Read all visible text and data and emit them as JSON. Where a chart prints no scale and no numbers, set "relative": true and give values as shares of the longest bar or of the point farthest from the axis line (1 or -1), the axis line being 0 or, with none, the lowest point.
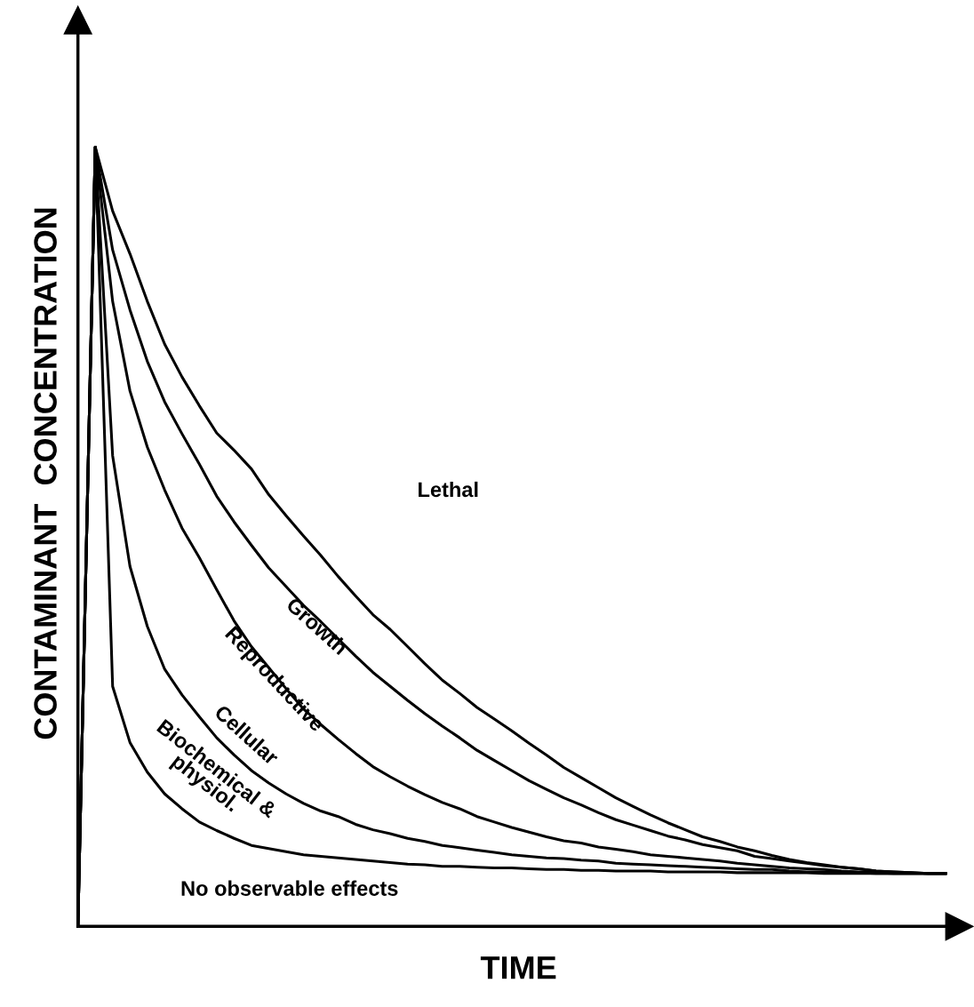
{
  "chart_data": {
    "type": "line",
    "relative": true,
    "xlabel": "TIME",
    "ylabel": "CONTAMINANT  CONCENTRATION",
    "line_style": "solid",
    "categories": [
      null,
      null,
      null,
      null,
      null,
      null,
      null,
      null,
      null,
      null,
      null,
      null,
      null,
      null,
      null,
      null,
      null,
      null,
      null,
      null,
      null,
      null,
      null,
      null,
      null,
      null,
      null,
      null,
      null,
      null,
      null,
      null,
      null,
      null,
      null,
      null,
      null,
      null,
      null,
      null,
      null,
      null,
      null,
      null,
      null,
      null,
      null,
      null,
      null,
      null,
      null
    ],
    "series": [
      {
        "color": "#000000",
        "values": [
          0,
          1,
          0.918,
          0.863,
          0.802,
          0.747,
          0.705,
          0.668,
          0.633,
          0.611,
          0.587,
          0.554,
          0.527,
          0.501,
          0.476,
          0.449,
          0.424,
          0.4,
          0.381,
          0.359,
          0.337,
          0.316,
          0.299,
          0.281,
          0.266,
          0.251,
          0.235,
          0.22,
          0.204,
          0.191,
          0.178,
          0.165,
          0.154,
          0.143,
          0.133,
          0.124,
          0.115,
          0.109,
          0.102,
          0.097,
          0.091,
          0.086,
          0.082,
          0.079,
          0.076,
          0.074,
          0.071,
          0.07,
          0.069,
          0.068,
          0.068
        ]
      },
      {
        "color": "#000000",
        "values": [
          0,
          1,
          0.868,
          0.791,
          0.725,
          0.673,
          0.632,
          0.593,
          0.552,
          0.519,
          0.489,
          0.46,
          0.436,
          0.412,
          0.391,
          0.369,
          0.347,
          0.326,
          0.308,
          0.29,
          0.273,
          0.257,
          0.242,
          0.226,
          0.213,
          0.2,
          0.187,
          0.176,
          0.165,
          0.156,
          0.146,
          0.137,
          0.13,
          0.123,
          0.116,
          0.111,
          0.105,
          0.101,
          0.097,
          0.09,
          0.087,
          0.084,
          0.081,
          0.078,
          0.076,
          0.074,
          0.071,
          0.07,
          0.069,
          0.068,
          0.068
        ]
      },
      {
        "color": "#000000",
        "values": [
          0,
          1,
          0.802,
          0.687,
          0.615,
          0.56,
          0.511,
          0.473,
          0.432,
          0.392,
          0.359,
          0.332,
          0.305,
          0.279,
          0.259,
          0.24,
          0.222,
          0.205,
          0.192,
          0.18,
          0.169,
          0.159,
          0.151,
          0.141,
          0.134,
          0.127,
          0.121,
          0.115,
          0.11,
          0.107,
          0.102,
          0.099,
          0.096,
          0.092,
          0.09,
          0.088,
          0.086,
          0.084,
          0.081,
          0.079,
          0.077,
          0.075,
          0.074,
          0.073,
          0.071,
          0.07,
          0.069,
          0.068,
          0.068,
          0.068,
          0.068
        ]
      },
      {
        "color": "#000000",
        "values": [
          0,
          1,
          0.604,
          0.462,
          0.385,
          0.33,
          0.297,
          0.269,
          0.242,
          0.22,
          0.2,
          0.184,
          0.17,
          0.158,
          0.148,
          0.141,
          0.131,
          0.124,
          0.119,
          0.113,
          0.109,
          0.104,
          0.101,
          0.098,
          0.095,
          0.092,
          0.09,
          0.088,
          0.087,
          0.085,
          0.084,
          0.081,
          0.08,
          0.079,
          0.078,
          0.077,
          0.076,
          0.075,
          0.074,
          0.073,
          0.073,
          0.071,
          0.07,
          0.07,
          0.069,
          0.069,
          0.068,
          0.068,
          0.068,
          0.068,
          0.068
        ]
      },
      {
        "color": "#000000",
        "values": [
          0,
          1,
          0.308,
          0.236,
          0.198,
          0.17,
          0.151,
          0.134,
          0.123,
          0.113,
          0.104,
          0.1,
          0.096,
          0.092,
          0.09,
          0.088,
          0.086,
          0.084,
          0.082,
          0.08,
          0.079,
          0.077,
          0.077,
          0.076,
          0.075,
          0.075,
          0.074,
          0.073,
          0.073,
          0.072,
          0.072,
          0.071,
          0.071,
          0.071,
          0.07,
          0.07,
          0.07,
          0.07,
          0.069,
          0.069,
          0.069,
          0.069,
          0.069,
          0.068,
          0.068,
          0.068,
          0.068,
          0.068,
          0.068,
          0.068,
          0.068
        ]
      }
    ],
    "annotations": [
      "Lethal",
      "Growth",
      "Reproductive",
      "Cellular",
      "Biochemical &\nphysiol.",
      "No observable effects"
    ]
  }
}
